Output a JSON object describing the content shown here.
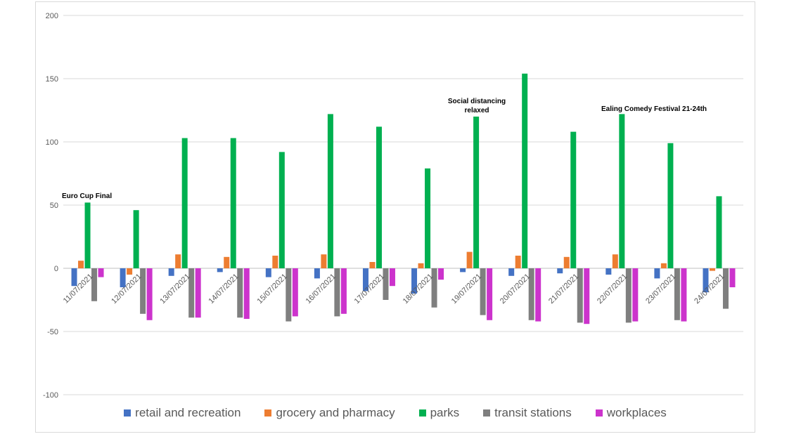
{
  "chart_data": {
    "type": "bar",
    "categories": [
      "11/07/2021",
      "12/07/2021",
      "13/07/2021",
      "14/07/2021",
      "15/07/2021",
      "16/07/2021",
      "17/07/2021",
      "18/07/2021",
      "19/07/2021",
      "20/07/2021",
      "21/07/2021",
      "22/07/2021",
      "23/07/2021",
      "24/07/2021"
    ],
    "series": [
      {
        "name": "retail and recreation",
        "color": "#4472c4",
        "values": [
          -14,
          -15,
          -6,
          -3,
          -7,
          -8,
          -18,
          -20,
          -3,
          -6,
          -4,
          -5,
          -8,
          -19
        ]
      },
      {
        "name": "grocery and pharmacy",
        "color": "#ed7d31",
        "values": [
          6,
          -5,
          11,
          9,
          10,
          11,
          5,
          4,
          13,
          10,
          9,
          11,
          4,
          -2
        ]
      },
      {
        "name": "parks",
        "color": "#00b050",
        "values": [
          52,
          46,
          103,
          103,
          92,
          122,
          112,
          79,
          120,
          154,
          108,
          122,
          99,
          57
        ]
      },
      {
        "name": "transit stations",
        "color": "#7f7f7f",
        "values": [
          -26,
          -36,
          -39,
          -39,
          -42,
          -38,
          -25,
          -31,
          -37,
          -41,
          -43,
          -43,
          -41,
          -32
        ]
      },
      {
        "name": "workplaces",
        "color": "#cc33cc",
        "values": [
          -7,
          -41,
          -39,
          -40,
          -38,
          -36,
          -14,
          -9,
          -41,
          -42,
          -44,
          -42,
          -42,
          -15
        ]
      }
    ],
    "annotations": [
      {
        "text": "Euro Cup Final"
      },
      {
        "text": "Social distancing relaxed"
      },
      {
        "text": "Ealing Comedy Festival 21-24th"
      }
    ],
    "ylim": [
      -100,
      200
    ],
    "yticks": [
      -100,
      -50,
      0,
      50,
      100,
      150,
      200
    ],
    "grid": true
  }
}
